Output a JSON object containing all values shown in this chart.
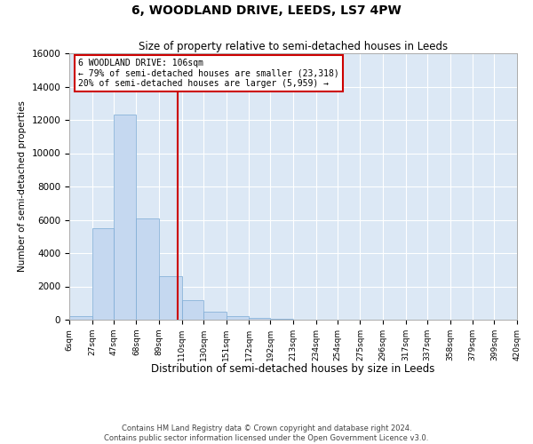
{
  "title": "6, WOODLAND DRIVE, LEEDS, LS7 4PW",
  "subtitle": "Size of property relative to semi-detached houses in Leeds",
  "xlabel": "Distribution of semi-detached houses by size in Leeds",
  "ylabel": "Number of semi-detached properties",
  "footer_line1": "Contains HM Land Registry data © Crown copyright and database right 2024.",
  "footer_line2": "Contains public sector information licensed under the Open Government Licence v3.0.",
  "annotation_title": "6 WOODLAND DRIVE: 106sqm",
  "annotation_line1": "← 79% of semi-detached houses are smaller (23,318)",
  "annotation_line2": "20% of semi-detached houses are larger (5,959) →",
  "property_size": 106,
  "bar_color": "#c5d8f0",
  "bar_edge_color": "#7aaad4",
  "vline_color": "#cc0000",
  "annotation_box_color": "#cc0000",
  "background_color": "#dce8f5",
  "ylim": [
    0,
    16000
  ],
  "yticks": [
    0,
    2000,
    4000,
    6000,
    8000,
    10000,
    12000,
    14000,
    16000
  ],
  "bin_edges": [
    6,
    27,
    47,
    68,
    89,
    110,
    130,
    151,
    172,
    192,
    213,
    234,
    254,
    275,
    296,
    317,
    337,
    358,
    379,
    399,
    420
  ],
  "bar_heights": [
    200,
    5500,
    12300,
    6100,
    2600,
    1200,
    500,
    200,
    100,
    50,
    20,
    10,
    5,
    2,
    1,
    0,
    0,
    0,
    0,
    0
  ]
}
